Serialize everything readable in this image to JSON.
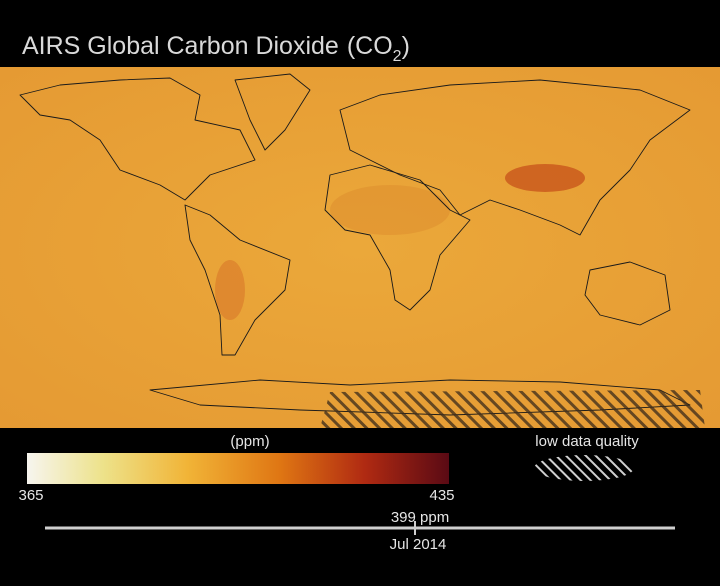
{
  "title": {
    "text": "AIRS Global Carbon Dioxide",
    "formula_open": "(CO",
    "subscript": "2",
    "formula_close": ")"
  },
  "colorbar": {
    "unit": "(ppm)",
    "min": "365",
    "max": "435"
  },
  "legend": {
    "label": "low data quality"
  },
  "timeline": {
    "value_label": "399 ppm",
    "date": "Jul 2014"
  }
}
